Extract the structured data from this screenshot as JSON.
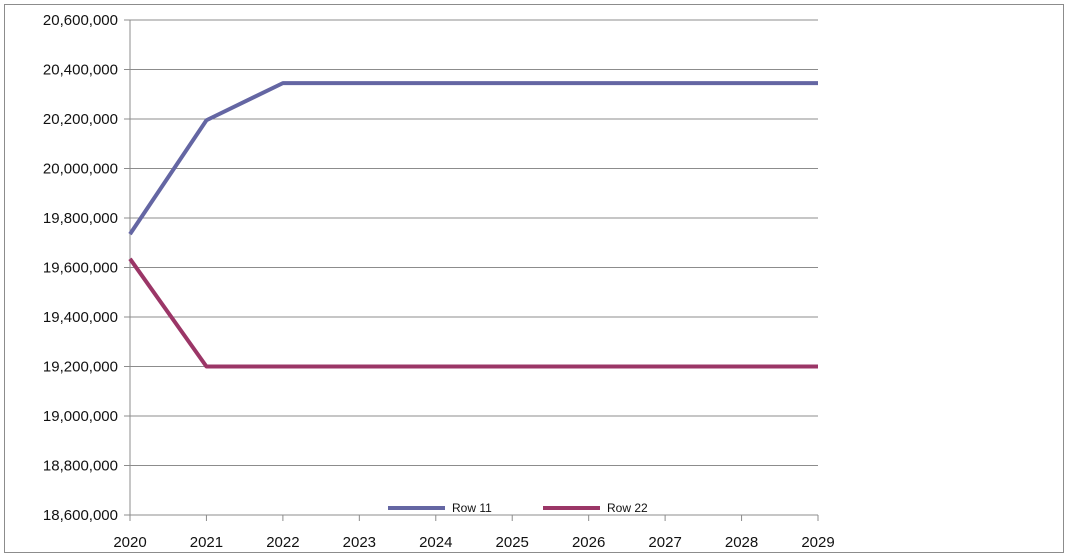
{
  "chart_data": {
    "type": "line",
    "title": "",
    "xlabel": "",
    "ylabel": "",
    "x": [
      "2020",
      "2021",
      "2022",
      "2023",
      "2024",
      "2025",
      "2026",
      "2027",
      "2028",
      "2029"
    ],
    "ylim": [
      18600000,
      20600000
    ],
    "y_ticks": [
      18600000,
      18800000,
      19000000,
      19200000,
      19400000,
      19600000,
      19800000,
      20000000,
      20200000,
      20400000,
      20600000
    ],
    "y_tick_labels": [
      "18,600,000",
      "18,800,000",
      "19,000,000",
      "19,200,000",
      "19,400,000",
      "19,600,000",
      "19,800,000",
      "20,000,000",
      "20,200,000",
      "20,400,000",
      "20,600,000"
    ],
    "grid": "horizontal",
    "legend_position": "bottom",
    "series": [
      {
        "name": "Row 11",
        "color": "#6466a3",
        "values": [
          19735000,
          20195000,
          20345000,
          20345000,
          20345000,
          20345000,
          20345000,
          20345000,
          20345000,
          20345000
        ]
      },
      {
        "name": "Row 22",
        "color": "#9b3667",
        "values": [
          19635000,
          19200000,
          19200000,
          19200000,
          19200000,
          19200000,
          19200000,
          19200000,
          19200000,
          19200000
        ]
      }
    ]
  }
}
